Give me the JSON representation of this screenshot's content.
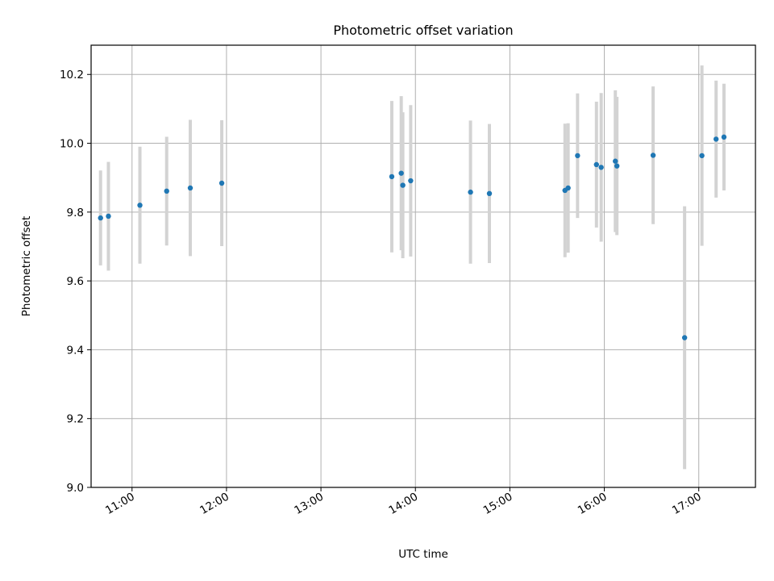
{
  "chart_data": {
    "type": "scatter",
    "title": "Photometric offset variation",
    "xlabel": "UTC time",
    "ylabel": "Photometric offset",
    "xlim": [
      "10:34",
      "17:36"
    ],
    "ylim": [
      9.0,
      10.285
    ],
    "grid": true,
    "x_ticks": [
      "11:00",
      "12:00",
      "13:00",
      "14:00",
      "15:00",
      "16:00",
      "17:00"
    ],
    "y_ticks": [
      "9.0",
      "9.2",
      "9.4",
      "9.6",
      "9.8",
      "10.0",
      "10.2"
    ],
    "marker_color": "#1f77b4",
    "errorbar_color": "#d3d3d3",
    "points": [
      {
        "x": "10:40",
        "y": 9.783,
        "err": 0.138
      },
      {
        "x": "10:45",
        "y": 9.788,
        "err": 0.158
      },
      {
        "x": "11:05",
        "y": 9.82,
        "err": 0.17
      },
      {
        "x": "11:22",
        "y": 9.861,
        "err": 0.158
      },
      {
        "x": "11:37",
        "y": 9.87,
        "err": 0.198
      },
      {
        "x": "11:57",
        "y": 9.884,
        "err": 0.183
      },
      {
        "x": "13:45",
        "y": 9.903,
        "err": 0.22
      },
      {
        "x": "13:51",
        "y": 9.913,
        "err": 0.224
      },
      {
        "x": "13:52",
        "y": 9.878,
        "err": 0.212
      },
      {
        "x": "13:57",
        "y": 9.891,
        "err": 0.22
      },
      {
        "x": "14:35",
        "y": 9.858,
        "err": 0.208
      },
      {
        "x": "14:47",
        "y": 9.854,
        "err": 0.202
      },
      {
        "x": "15:35",
        "y": 9.863,
        "err": 0.194
      },
      {
        "x": "15:37",
        "y": 9.87,
        "err": 0.188
      },
      {
        "x": "15:43",
        "y": 9.964,
        "err": 0.181
      },
      {
        "x": "15:55",
        "y": 9.938,
        "err": 0.183
      },
      {
        "x": "15:58",
        "y": 9.93,
        "err": 0.216
      },
      {
        "x": "16:07",
        "y": 9.948,
        "err": 0.206
      },
      {
        "x": "16:08",
        "y": 9.934,
        "err": 0.201
      },
      {
        "x": "16:31",
        "y": 9.965,
        "err": 0.2
      },
      {
        "x": "16:51",
        "y": 9.435,
        "err": 0.382
      },
      {
        "x": "17:02",
        "y": 9.964,
        "err": 0.262
      },
      {
        "x": "17:11",
        "y": 10.012,
        "err": 0.17
      },
      {
        "x": "17:16",
        "y": 10.018,
        "err": 0.155
      }
    ]
  }
}
